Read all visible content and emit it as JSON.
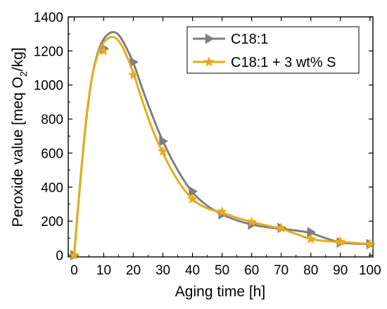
{
  "chart_data": {
    "type": "line",
    "xlabel": "Aging time [h]",
    "ylabel_parts": {
      "pre": "Peroxide value [meq O",
      "sub": "2",
      "post": "/kg]"
    },
    "xlim": [
      -2,
      101
    ],
    "ylim": [
      -10,
      1400
    ],
    "xticks": [
      0,
      10,
      20,
      30,
      40,
      50,
      60,
      70,
      80,
      90,
      100
    ],
    "yticks": [
      0,
      200,
      400,
      600,
      800,
      1000,
      1200,
      1400
    ],
    "grid": false,
    "legend_position": "top-right",
    "series": [
      {
        "name": "C18:1",
        "color": "#7f7f7f",
        "marker": "triangle-right",
        "x": [
          0,
          10,
          20,
          30,
          40,
          50,
          60,
          70,
          80,
          90,
          100
        ],
        "y": [
          0,
          1215,
          1135,
          670,
          375,
          240,
          180,
          160,
          135,
          75,
          65
        ],
        "curve_x": [
          0,
          2,
          4,
          6,
          8,
          10,
          12,
          13.5,
          15,
          17,
          20,
          23,
          26,
          30,
          35,
          40,
          45,
          50,
          55,
          60,
          65,
          70,
          75,
          80,
          85,
          90,
          95,
          100
        ],
        "curve_y": [
          0,
          420,
          780,
          1040,
          1190,
          1270,
          1305,
          1310,
          1295,
          1240,
          1130,
          980,
          840,
          670,
          500,
          370,
          290,
          240,
          205,
          180,
          165,
          155,
          145,
          130,
          100,
          75,
          68,
          65
        ]
      },
      {
        "name": "C18:1 + 3 wt% S",
        "color": "#e6ac1c",
        "marker": "star",
        "x": [
          0,
          10,
          20,
          30,
          40,
          50,
          60,
          70,
          80,
          90,
          100
        ],
        "y": [
          0,
          1200,
          1060,
          610,
          330,
          255,
          195,
          160,
          95,
          80,
          65
        ],
        "curve_x": [
          0,
          2,
          4,
          6,
          8,
          10,
          12,
          13.5,
          15,
          17,
          20,
          23,
          26,
          30,
          35,
          40,
          45,
          50,
          55,
          60,
          65,
          70,
          75,
          80,
          85,
          90,
          95,
          100
        ],
        "curve_y": [
          0,
          420,
          790,
          1040,
          1180,
          1250,
          1280,
          1280,
          1260,
          1200,
          1070,
          910,
          760,
          600,
          440,
          330,
          275,
          250,
          220,
          195,
          175,
          155,
          125,
          95,
          83,
          78,
          72,
          65
        ]
      }
    ]
  }
}
